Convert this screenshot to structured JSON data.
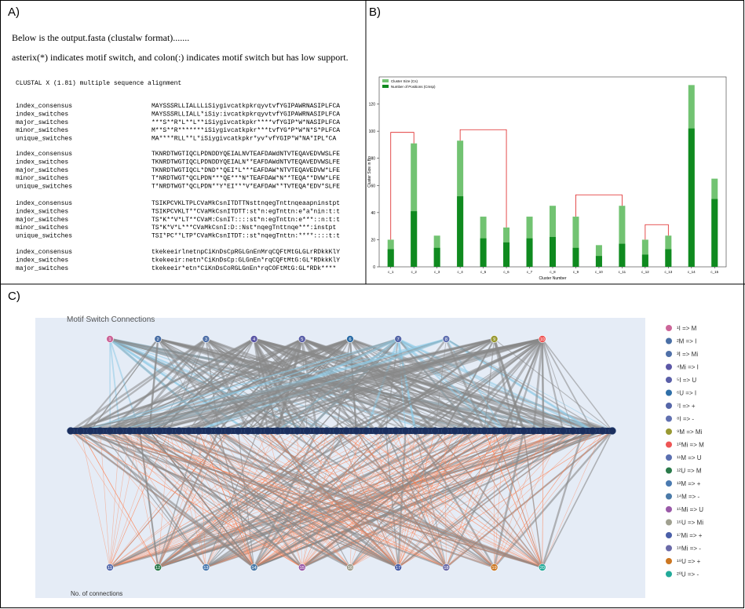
{
  "panel_a": {
    "label": "A)",
    "lines": [
      "Below is the output.fasta (clustalw format).......",
      "asterix(*) indicates motif switch, and colon(:) indicates motif switch but has low support."
    ],
    "header": "CLUSTAL X (1.81) multiple sequence alignment",
    "blocks": [
      [
        [
          "index_consensus",
          "MAYSSSRLLIALLLiSiygivcatkpkrqyvtvfYGIPAWRNASIPLFCA"
        ],
        [
          "index_switches",
          "MAYSSSRLLIALL*iSiy:ivcatkpkrqyvtvfYGIPAWRNASIPLFCA"
        ],
        [
          "major_switches",
          "***S**R*L**L**iSiygivcatkpkr****vfYGIP*W*NASIPLFCA"
        ],
        [
          "minor_switches",
          "M**S**R*******iSiygivcatkpkr***tvfYG*P*W*N*S*PLFCA"
        ],
        [
          "unique_switches",
          "MA****RLL**L*iSiygivcatkpkr*yv*vfYGIP*W*NA*IPL*CA"
        ]
      ],
      [
        [
          "index_consensus",
          "TKNRDTWGTIQCLPDNDDYQEIALNVTEAFDAWdNTVTEQAVEDVWSLFE"
        ],
        [
          "index_switches",
          "TKNRDTWGTIQCLPDNDDYQEIALN**EAFDAWdNTVTEQAVEDVWSLFE"
        ],
        [
          "major_switches",
          "TKNRDTWGTIQCL*DND**QEI*L***EAFDAW*NTVTEQAVEDVW*LFE"
        ],
        [
          "minor_switches",
          "T*NRDTWGT*QCLPDN***QE***N*TEAFDAW*N**TEQA**DVW*LFE"
        ],
        [
          "unique_switches",
          "T*NRDTWGT*QCLPDN**Y*EI***V*EAFDAW**TVTEQA*EDV*SLFE"
        ]
      ],
      [
        [
          "index_consensus",
          "TSIKPCVKLTPLCVaMkCsnITDTTNsttnqegTnttnqeaapninstpt"
        ],
        [
          "index_switches",
          "TSIKPCVKLT**CVaMkCsnITDTT:st*n:egTnttn:e*a*nin:t:t"
        ],
        [
          "major_switches",
          "TS*K**V*LT**CVaM:CsnIT::::st*n:egTnttn:e***::n:t:t"
        ],
        [
          "minor_switches",
          "TS*K*V*L***CVaMkCsnI:D::Nst*nqegTnttnqe***:instpt"
        ],
        [
          "unique_switches",
          "TSI*PC**LTP*CVaMkCsnITDT::st*nqegTnttn:****::::t:t"
        ]
      ],
      [
        [
          "index_consensus",
          "tkekeeirlnetnpCiKnDsCpRGLGnEnMrqCQFtMtGLGLrRDkkKlY"
        ],
        [
          "index_switches",
          "tkekeeir:netn*CiKnDsCp:GLGnEn*rqCQFtMtG:GL*RDkkKlY"
        ],
        [
          "major_switches",
          "tkekeeir*etn*CiKnDsCoRGLGnEn*rqCOFtMtG:GL*RDk****"
        ]
      ]
    ]
  },
  "chart_data": {
    "type": "bar",
    "panel_label": "B)",
    "xlabel": "Cluster Number",
    "ylabel": "Cluster Size in Bp",
    "categories": [
      "c_1",
      "c_2",
      "c_3",
      "c_4",
      "c_5",
      "c_6",
      "c_7",
      "c_8",
      "c_9",
      "c_10",
      "c_11",
      "c_12",
      "c_13",
      "c_14",
      "c_15"
    ],
    "series": [
      {
        "name": "Cluster Size (Cs)",
        "color": "#72c372",
        "values": [
          20,
          91,
          23,
          93,
          37,
          29,
          37,
          45,
          37,
          16,
          45,
          20,
          23,
          134,
          65
        ]
      },
      {
        "name": "Number of Positions (Cmsp)",
        "color": "#0f8a1f",
        "values": [
          13,
          41,
          14,
          52,
          21,
          18,
          21,
          22,
          14,
          8,
          17,
          9,
          13,
          102,
          50
        ]
      }
    ],
    "ylim": [
      0,
      140
    ],
    "yticks": [
      0,
      20,
      40,
      60,
      80,
      100,
      120
    ],
    "legend": "upper left"
  },
  "panel_c": {
    "label": "C)",
    "title": "Motif Switch Connections",
    "footer": "No. of connections",
    "top_nodes": [
      "1",
      "2",
      "3",
      "4",
      "5",
      "6",
      "7",
      "8",
      "9",
      "10"
    ],
    "bottom_nodes": [
      "11",
      "12",
      "13",
      "14",
      "15",
      "16",
      "17",
      "18",
      "19",
      "20"
    ],
    "legend": [
      {
        "name": "¹I => M",
        "color": "#cc6699"
      },
      {
        "name": "²M => I",
        "color": "#4a6fa5"
      },
      {
        "name": "³I => Mi",
        "color": "#4f70a8"
      },
      {
        "name": "⁴Mi => I",
        "color": "#5b57a6"
      },
      {
        "name": "⁵I => U",
        "color": "#5a5fa8"
      },
      {
        "name": "⁶U => I",
        "color": "#2f6fa8"
      },
      {
        "name": "⁷I => +",
        "color": "#5566a8"
      },
      {
        "name": "⁸I => -",
        "color": "#6070b0"
      },
      {
        "name": "⁹M => Mi",
        "color": "#999933"
      },
      {
        "name": "¹⁰Mi => M",
        "color": "#ee5555"
      },
      {
        "name": "¹¹M => U",
        "color": "#5a6fb0"
      },
      {
        "name": "¹²U => M",
        "color": "#2a7a4a"
      },
      {
        "name": "¹³M => +",
        "color": "#4a7ab0"
      },
      {
        "name": "¹⁴M => -",
        "color": "#4a7aa8"
      },
      {
        "name": "¹⁵Mi => U",
        "color": "#9a5aa8"
      },
      {
        "name": "¹⁶U => Mi",
        "color": "#a0a090"
      },
      {
        "name": "¹⁷Mi => +",
        "color": "#4a5fa8"
      },
      {
        "name": "¹⁸Mi => -",
        "color": "#6a6aa8"
      },
      {
        "name": "¹⁹U => +",
        "color": "#cc7722"
      },
      {
        "name": "²⁰U => -",
        "color": "#22aa99"
      }
    ]
  }
}
